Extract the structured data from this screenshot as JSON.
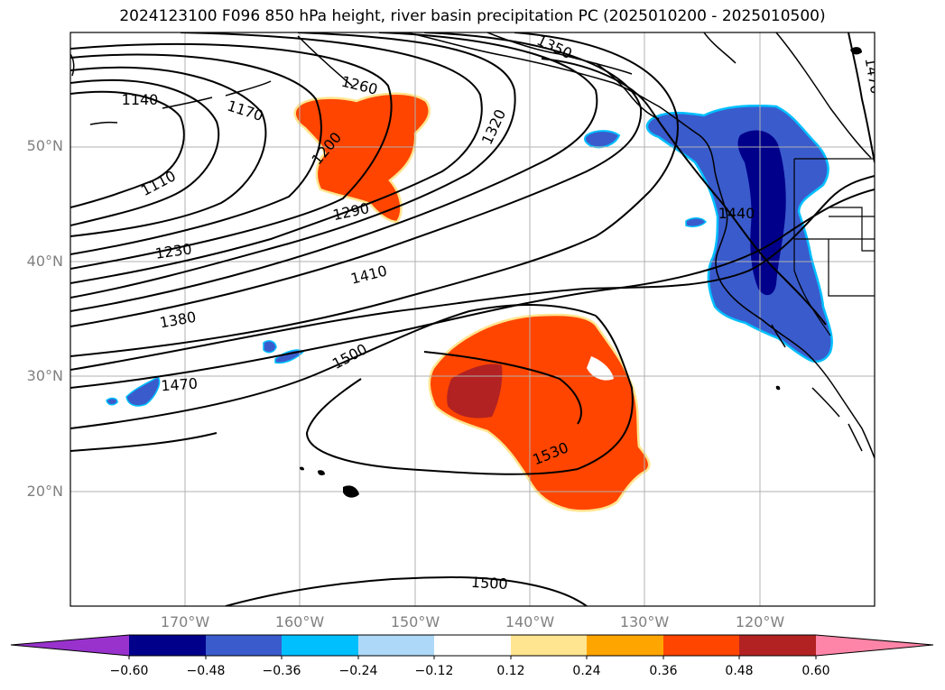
{
  "title": "2024123100 F096 850 hPa height, river basin precipitation PC (2025010200 - 2025010500)",
  "map": {
    "lat_labels": [
      "50°N",
      "40°N",
      "30°N",
      "20°N"
    ],
    "lon_labels": [
      "170°W",
      "160°W",
      "150°W",
      "140°W",
      "130°W",
      "120°W"
    ],
    "contour_labels": [
      {
        "id": "c1140",
        "text": "1140"
      },
      {
        "id": "c1170",
        "text": "1170"
      },
      {
        "id": "c1110",
        "text": "1110"
      },
      {
        "id": "c1200",
        "text": "1200"
      },
      {
        "id": "c1260",
        "text": "1260"
      },
      {
        "id": "c1230",
        "text": "1230"
      },
      {
        "id": "c1290",
        "text": "1290"
      },
      {
        "id": "c1320",
        "text": "1320"
      },
      {
        "id": "c1350",
        "text": "1350"
      },
      {
        "id": "c1380",
        "text": "1380"
      },
      {
        "id": "c1410",
        "text": "1410"
      },
      {
        "id": "c1440",
        "text": "1440"
      },
      {
        "id": "c1470a",
        "text": "1470"
      },
      {
        "id": "c1470b",
        "text": "1470"
      },
      {
        "id": "c1500a",
        "text": "1500"
      },
      {
        "id": "c1530",
        "text": "1530"
      },
      {
        "id": "c1500b",
        "text": "1500"
      }
    ]
  },
  "colorbar": {
    "colors": [
      "#9932cc",
      "#00008b",
      "#3a5bcc",
      "#00bfff",
      "#add8f7",
      "#ffffff",
      "#ffe58f",
      "#ffa500",
      "#ff4500",
      "#b22222",
      "#ff85a8"
    ],
    "tick_labels": [
      "−0.60",
      "−0.48",
      "−0.36",
      "−0.24",
      "−0.12",
      "0.12",
      "0.24",
      "0.36",
      "0.48",
      "0.60"
    ]
  }
}
